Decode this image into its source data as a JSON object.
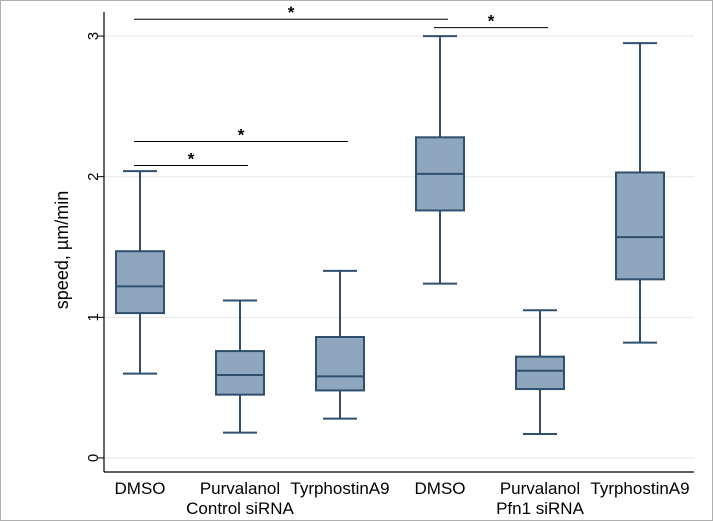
{
  "chart_data": {
    "type": "box",
    "ylabel": "speed, µm/min",
    "ylim": [
      -0.1,
      3.1
    ],
    "yticks": [
      0,
      1,
      2,
      3
    ],
    "grid": true,
    "categories": [
      "DMSO",
      "Purvalanol",
      "TyrphostinA9",
      "DMSO",
      "Purvalanol",
      "TyrphostinA9"
    ],
    "groups": [
      {
        "label": "Control siRNA",
        "categories": [
          "DMSO",
          "Purvalanol",
          "TyrphostinA9"
        ]
      },
      {
        "label": "Pfn1 siRNA",
        "categories": [
          "DMSO",
          "Purvalanol",
          "TyrphostinA9"
        ]
      }
    ],
    "boxes": [
      {
        "group": "Control siRNA",
        "category": "DMSO",
        "whisker_low": 0.6,
        "q1": 1.03,
        "median": 1.22,
        "q3": 1.47,
        "whisker_high": 2.04
      },
      {
        "group": "Control siRNA",
        "category": "Purvalanol",
        "whisker_low": 0.18,
        "q1": 0.45,
        "median": 0.59,
        "q3": 0.76,
        "whisker_high": 1.12
      },
      {
        "group": "Control siRNA",
        "category": "TyrphostinA9",
        "whisker_low": 0.28,
        "q1": 0.48,
        "median": 0.58,
        "q3": 0.86,
        "whisker_high": 1.33
      },
      {
        "group": "Pfn1 siRNA",
        "category": "DMSO",
        "whisker_low": 1.24,
        "q1": 1.76,
        "median": 2.02,
        "q3": 2.28,
        "whisker_high": 3.0
      },
      {
        "group": "Pfn1 siRNA",
        "category": "Purvalanol",
        "whisker_low": 0.17,
        "q1": 0.49,
        "median": 0.62,
        "q3": 0.72,
        "whisker_high": 1.05
      },
      {
        "group": "Pfn1 siRNA",
        "category": "TyrphostinA9",
        "whisker_low": 0.82,
        "q1": 1.27,
        "median": 1.57,
        "q3": 2.03,
        "whisker_high": 2.95
      }
    ],
    "significance": [
      {
        "from": 0,
        "to": 3,
        "y": 3.12,
        "label": "*"
      },
      {
        "from": 3,
        "to": 4,
        "y": 3.06,
        "label": "*"
      },
      {
        "from": 0,
        "to": 2,
        "y": 2.25,
        "label": "*"
      },
      {
        "from": 0,
        "to": 1,
        "y": 2.08,
        "label": "*"
      }
    ],
    "colors": {
      "box_fill": "#8fa6bf",
      "box_stroke": "#2f4f6f",
      "grid": "#e6e6e6",
      "axis": "#000000"
    }
  }
}
